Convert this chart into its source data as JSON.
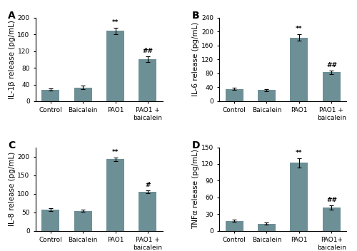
{
  "subplots": [
    {
      "label": "A",
      "ylabel": "IL-1β release (pg/mL)",
      "ylim": [
        0,
        200
      ],
      "yticks": [
        0,
        40,
        80,
        120,
        160,
        200
      ],
      "values": [
        28,
        33,
        168,
        100
      ],
      "errors": [
        3,
        4,
        8,
        7
      ],
      "annotations": [
        "",
        "",
        "**",
        "##"
      ]
    },
    {
      "label": "B",
      "ylabel": "IL-6 release (pg/mL)",
      "ylim": [
        0,
        240
      ],
      "yticks": [
        0,
        40,
        80,
        120,
        160,
        200,
        240
      ],
      "values": [
        35,
        32,
        183,
        83
      ],
      "errors": [
        3,
        3,
        10,
        5
      ],
      "annotations": [
        "",
        "",
        "**",
        "##"
      ]
    },
    {
      "label": "C",
      "ylabel": "IL-8 release (pg/mL)",
      "ylim": [
        0,
        225
      ],
      "yticks": [
        0,
        50,
        100,
        150,
        200
      ],
      "values": [
        57,
        54,
        193,
        105
      ],
      "errors": [
        4,
        3,
        5,
        4
      ],
      "annotations": [
        "",
        "",
        "**",
        "#"
      ]
    },
    {
      "label": "D",
      "ylabel": "TNFα release (pg/mL)",
      "ylim": [
        0,
        150
      ],
      "yticks": [
        0,
        30,
        60,
        90,
        120,
        150
      ],
      "values": [
        18,
        13,
        122,
        42
      ],
      "errors": [
        2,
        2,
        8,
        4
      ],
      "annotations": [
        "",
        "",
        "**",
        "##"
      ]
    }
  ],
  "categories_ABC": [
    "Control",
    "Baicalein",
    "PAO1",
    "PAO1 +\nbaicalein"
  ],
  "categories_D": [
    "Control",
    "Baicalein",
    "PAO1",
    "PAO1+\nbaicalein"
  ],
  "bar_color": "#6d8f96",
  "error_color": "black",
  "annotation_fontsize": 6.5,
  "label_fontsize": 7.5,
  "tick_fontsize": 6.5,
  "panel_label_fontsize": 10,
  "background_color": "#ffffff"
}
